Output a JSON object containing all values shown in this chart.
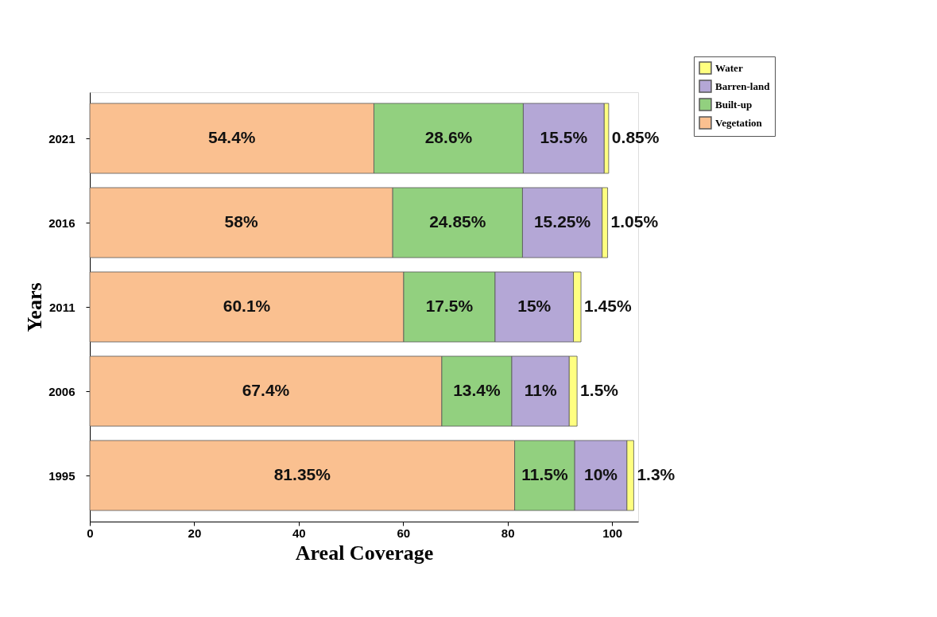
{
  "chart_data": {
    "type": "bar",
    "orientation": "horizontal",
    "stacked": true,
    "xlabel": "Areal Coverage",
    "ylabel": "Years",
    "categories": [
      "2021",
      "2016",
      "2011",
      "2006",
      "1995"
    ],
    "xlim": [
      0,
      105
    ],
    "xticks": [
      0,
      20,
      40,
      60,
      80,
      100
    ],
    "grid": false,
    "legend": "top right",
    "series": [
      {
        "name": "Vegetation",
        "color": "#fac090",
        "values": [
          54.4,
          58,
          60.1,
          67.4,
          81.35
        ],
        "value_labels": [
          "54.4%",
          "58%",
          "60.1%",
          "67.4%",
          "81.35%"
        ]
      },
      {
        "name": "Built-up",
        "color": "#92d07f",
        "values": [
          28.6,
          24.85,
          17.5,
          13.4,
          11.5
        ],
        "value_labels": [
          "28.6%",
          "24.85%",
          "17.5%",
          "13.4%",
          "11.5%"
        ]
      },
      {
        "name": "Barren-land",
        "color": "#b4a7d6",
        "values": [
          15.5,
          15.25,
          15,
          11,
          10
        ],
        "value_labels": [
          "15.5%",
          "15.25%",
          "15%",
          "11%",
          "10%"
        ]
      },
      {
        "name": "Water",
        "color": "#ffff80",
        "values": [
          0.85,
          1.05,
          1.45,
          1.5,
          1.3
        ],
        "value_labels": [
          "0.85%",
          "1.05%",
          "1.45%",
          "1.5%",
          "1.3%"
        ]
      }
    ]
  }
}
